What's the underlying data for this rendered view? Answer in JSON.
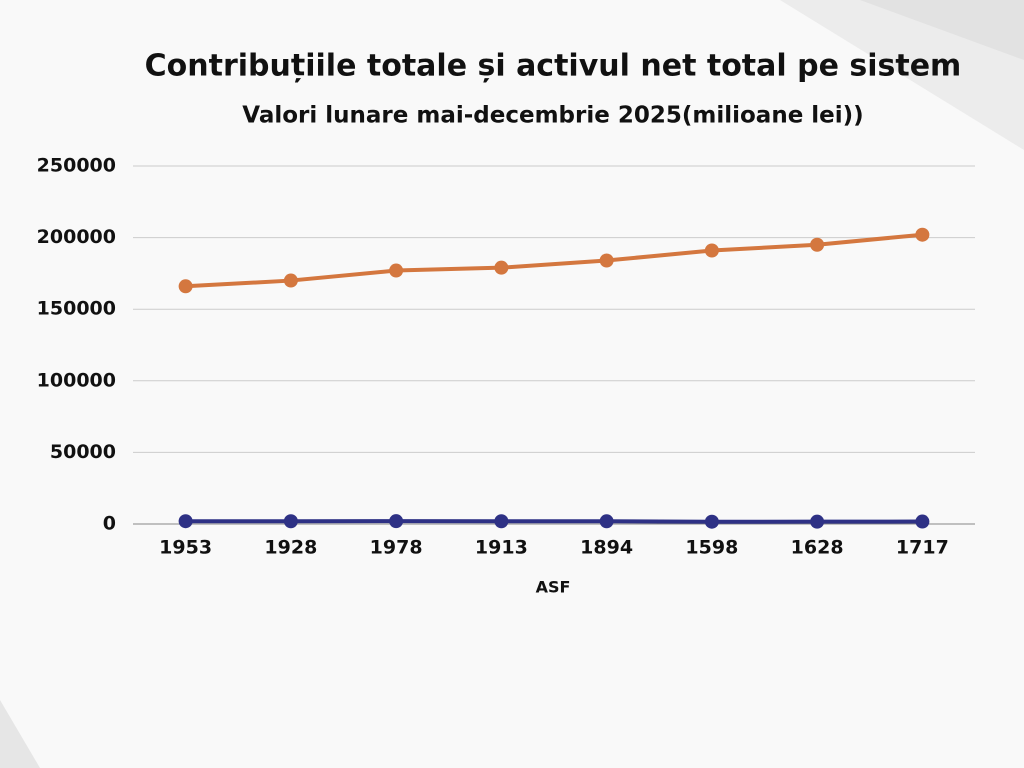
{
  "chart_data": {
    "type": "line",
    "title": "Contribuțiile totale și activul net total pe sistem",
    "subtitle": "Valori lunare mai-decembrie 2025(milioane lei))",
    "x_label": "ASF",
    "categories": [
      "1953",
      "1928",
      "1978",
      "1913",
      "1894",
      "1598",
      "1628",
      "1717"
    ],
    "series": [
      {
        "color": "#d4773f",
        "values": [
          166000,
          170000,
          177000,
          179000,
          184000,
          191000,
          195000,
          202000
        ]
      },
      {
        "color": "#2e3185",
        "values": [
          1953,
          1928,
          1978,
          1913,
          1894,
          1598,
          1628,
          1717
        ]
      }
    ],
    "ylim": [
      0,
      250000
    ],
    "yticks": [
      0,
      50000,
      100000,
      150000,
      200000,
      250000
    ],
    "grid": true
  }
}
